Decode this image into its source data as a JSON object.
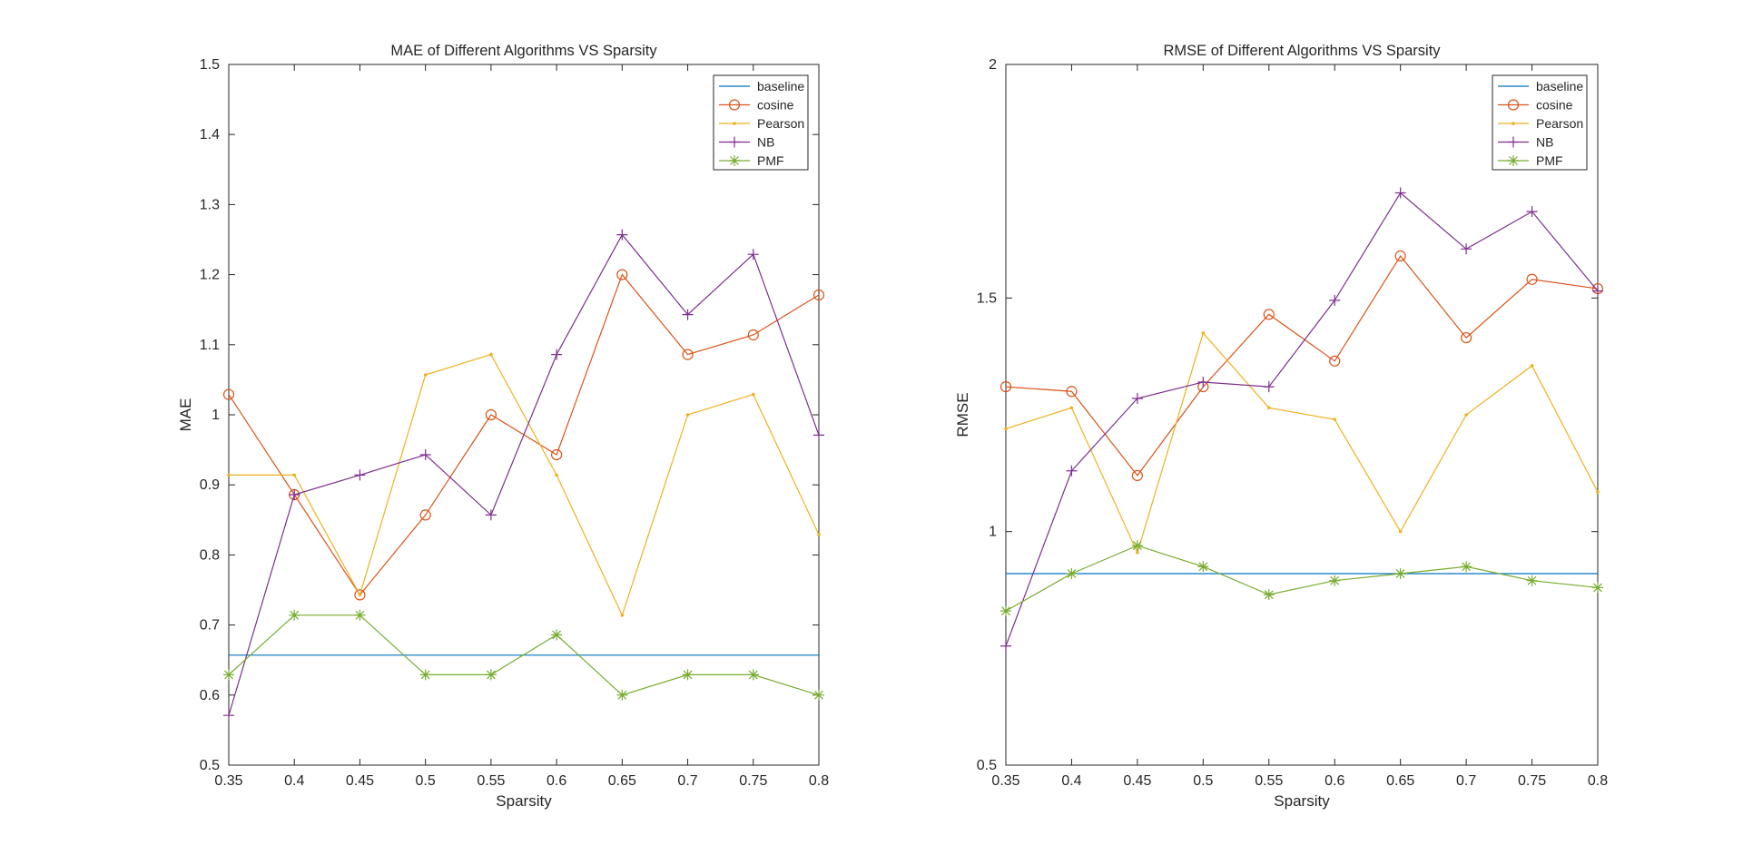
{
  "chart_data": [
    {
      "type": "line",
      "title": "MAE of Different Algorithms VS Sparsity",
      "xlabel": "Sparsity",
      "ylabel": "MAE",
      "xlim": [
        0.35,
        0.8
      ],
      "ylim": [
        0.5,
        1.5
      ],
      "xticks": [
        0.35,
        0.4,
        0.45,
        0.5,
        0.55,
        0.6,
        0.65,
        0.7,
        0.75,
        0.8
      ],
      "xtick_labels": [
        "0.35",
        "0.4",
        "0.45",
        "0.5",
        "0.55",
        "0.6",
        "0.65",
        "0.7",
        "0.75",
        "0.8"
      ],
      "yticks": [
        0.5,
        0.6,
        0.7,
        0.8,
        0.9,
        1.0,
        1.1,
        1.2,
        1.3,
        1.4,
        1.5
      ],
      "ytick_labels": [
        "0.5",
        "0.6",
        "0.7",
        "0.8",
        "0.9",
        "1",
        "1.1",
        "1.2",
        "1.3",
        "1.4",
        "1.5"
      ],
      "legend_position": "top-right",
      "grid": false,
      "x": [
        0.35,
        0.4,
        0.45,
        0.5,
        0.55,
        0.6,
        0.65,
        0.7,
        0.75,
        0.8
      ],
      "series": [
        {
          "name": "baseline",
          "color": "#0072BD",
          "marker": "none",
          "values": [
            0.657,
            0.657,
            0.657,
            0.657,
            0.657,
            0.657,
            0.657,
            0.657,
            0.657,
            0.657
          ]
        },
        {
          "name": "cosine",
          "color": "#D95319",
          "marker": "circle",
          "values": [
            1.029,
            0.886,
            0.743,
            0.857,
            1.0,
            0.943,
            1.2,
            1.086,
            1.114,
            1.171
          ]
        },
        {
          "name": "Pearson",
          "color": "#EDB120",
          "marker": "point",
          "values": [
            0.914,
            0.914,
            0.743,
            1.057,
            1.086,
            0.914,
            0.714,
            1.0,
            1.029,
            0.829
          ]
        },
        {
          "name": "NB",
          "color": "#7E2F8E",
          "marker": "plus",
          "values": [
            0.571,
            0.886,
            0.914,
            0.943,
            0.857,
            1.086,
            1.257,
            1.143,
            1.229,
            0.971
          ]
        },
        {
          "name": "PMF",
          "color": "#77AC30",
          "marker": "asterisk",
          "values": [
            0.629,
            0.714,
            0.714,
            0.629,
            0.629,
            0.686,
            0.6,
            0.629,
            0.629,
            0.6
          ]
        }
      ]
    },
    {
      "type": "line",
      "title": "RMSE of Different Algorithms VS Sparsity",
      "xlabel": "Sparsity",
      "ylabel": "RMSE",
      "xlim": [
        0.35,
        0.8
      ],
      "ylim": [
        0.5,
        2.0
      ],
      "xticks": [
        0.35,
        0.4,
        0.45,
        0.5,
        0.55,
        0.6,
        0.65,
        0.7,
        0.75,
        0.8
      ],
      "xtick_labels": [
        "0.35",
        "0.4",
        "0.45",
        "0.5",
        "0.55",
        "0.6",
        "0.65",
        "0.7",
        "0.75",
        "0.8"
      ],
      "yticks": [
        0.5,
        1.0,
        1.5,
        2.0
      ],
      "ytick_labels": [
        "0.5",
        "1",
        "1.5",
        "2"
      ],
      "legend_position": "top-right",
      "grid": false,
      "x": [
        0.35,
        0.4,
        0.45,
        0.5,
        0.55,
        0.6,
        0.65,
        0.7,
        0.75,
        0.8
      ],
      "series": [
        {
          "name": "baseline",
          "color": "#0072BD",
          "marker": "none",
          "values": [
            0.91,
            0.91,
            0.91,
            0.91,
            0.91,
            0.91,
            0.91,
            0.91,
            0.91,
            0.91
          ]
        },
        {
          "name": "cosine",
          "color": "#D95319",
          "marker": "circle",
          "values": [
            1.31,
            1.3,
            1.12,
            1.31,
            1.465,
            1.365,
            1.59,
            1.415,
            1.54,
            1.52
          ]
        },
        {
          "name": "Pearson",
          "color": "#EDB120",
          "marker": "point",
          "values": [
            1.22,
            1.265,
            0.955,
            1.425,
            1.265,
            1.24,
            1.0,
            1.25,
            1.355,
            1.085
          ]
        },
        {
          "name": "NB",
          "color": "#7E2F8E",
          "marker": "plus",
          "values": [
            0.755,
            1.13,
            1.285,
            1.32,
            1.31,
            1.495,
            1.725,
            1.605,
            1.685,
            1.515
          ]
        },
        {
          "name": "PMF",
          "color": "#77AC30",
          "marker": "asterisk",
          "values": [
            0.83,
            0.91,
            0.97,
            0.925,
            0.865,
            0.895,
            0.91,
            0.925,
            0.895,
            0.88
          ]
        }
      ]
    }
  ]
}
